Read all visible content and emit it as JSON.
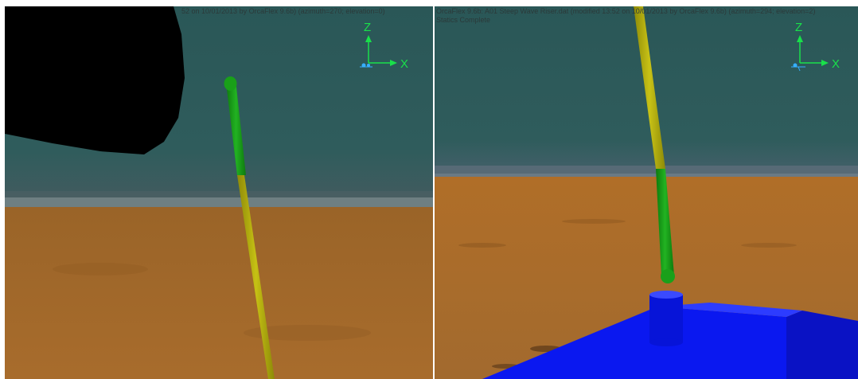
{
  "views": [
    {
      "caption_line1": "52 on 10/01/2013 by OrcaFlex 9.6b) (azimuth=270; elevation=0)",
      "caption_line2": "",
      "axis_z": "Z",
      "axis_x": "X"
    },
    {
      "caption_line1": "OrcaFlex 9.6b: A01 Steep Wave Riser.dat (modified 13:52 on 10/01/2013 by OrcaFlex 9.6b) (azimuth=294; elevation=2)",
      "caption_line2": "Statics Complete",
      "axis_z": "Z",
      "axis_x": "X"
    }
  ],
  "colors": {
    "water": "#2e5a5a",
    "seabed": "#a86a28",
    "riser_green": "#1aa01a",
    "riser_yellow": "#b8b20e",
    "base_blue": "#0a18f0",
    "vessel": "#000000",
    "axis": "#19e04a"
  }
}
